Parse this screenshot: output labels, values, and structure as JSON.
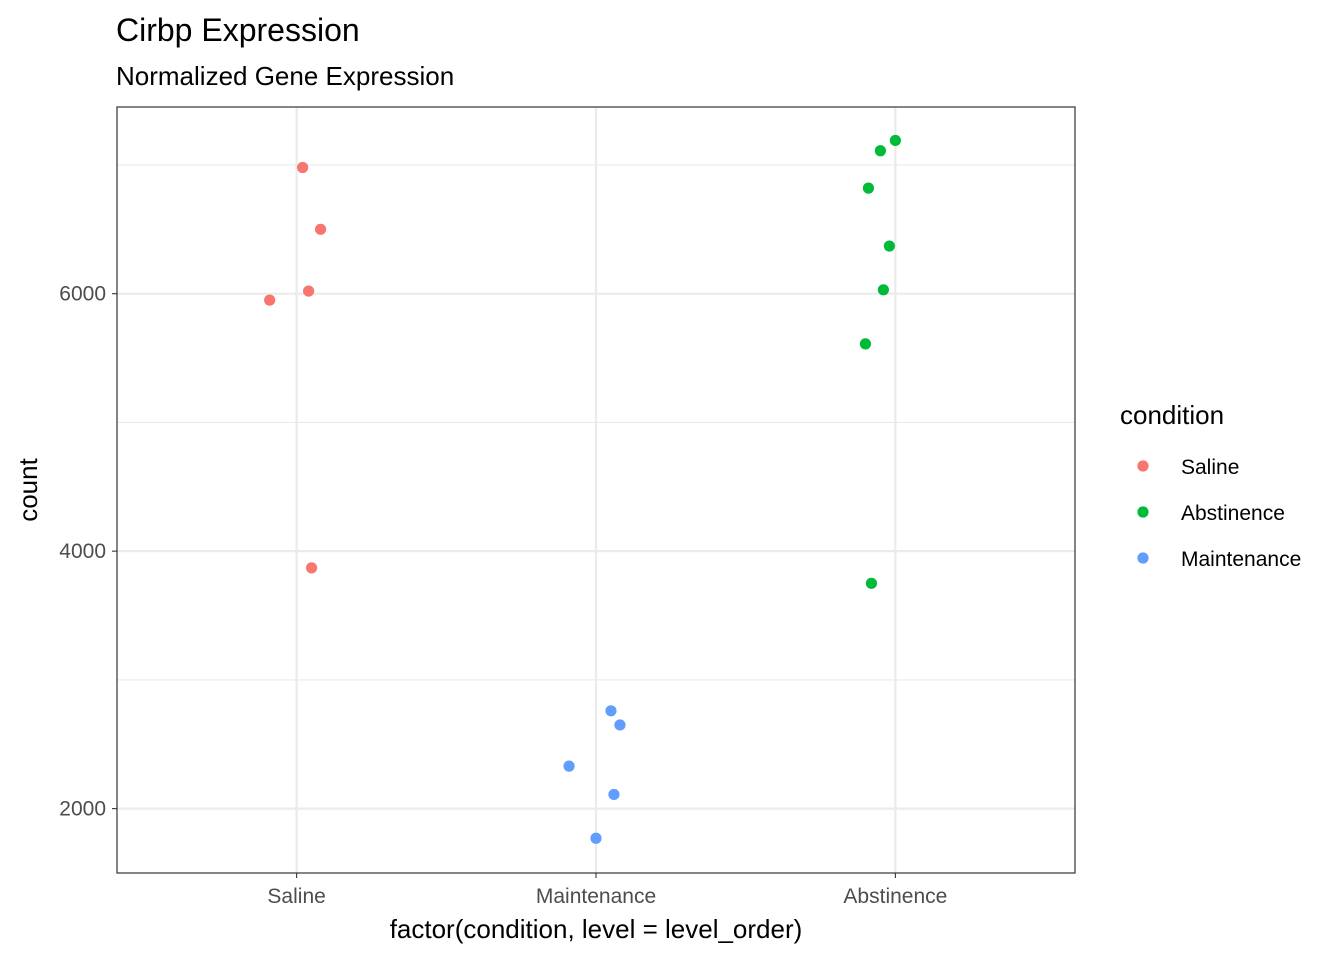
{
  "chart_data": {
    "type": "scatter",
    "title": "Cirbp Expression",
    "subtitle": "Normalized Gene Expression",
    "xlabel": "factor(condition, level = level_order)",
    "ylabel": "count",
    "categories": [
      "Saline",
      "Maintenance",
      "Abstinence"
    ],
    "ylim": [
      1500,
      7450
    ],
    "y_ticks": [
      2000,
      4000,
      6000
    ],
    "y_minor_ticks": [
      3000,
      5000,
      7000
    ],
    "grid": true,
    "legend": {
      "title": "condition",
      "position": "right",
      "entries": [
        "Saline",
        "Abstinence",
        "Maintenance"
      ]
    },
    "colors": {
      "Saline": "#F8766D",
      "Abstinence": "#00BA38",
      "Maintenance": "#619CFF"
    },
    "series": [
      {
        "name": "Saline",
        "category": "Saline",
        "points": [
          {
            "jitter": 0.02,
            "y": 6980
          },
          {
            "jitter": 0.08,
            "y": 6500
          },
          {
            "jitter": 0.04,
            "y": 6020
          },
          {
            "jitter": -0.09,
            "y": 5950
          },
          {
            "jitter": 0.05,
            "y": 3870
          }
        ]
      },
      {
        "name": "Maintenance",
        "category": "Maintenance",
        "points": [
          {
            "jitter": 0.05,
            "y": 2760
          },
          {
            "jitter": 0.08,
            "y": 2650
          },
          {
            "jitter": -0.09,
            "y": 2330
          },
          {
            "jitter": 0.06,
            "y": 2110
          },
          {
            "jitter": 0.0,
            "y": 1770
          }
        ]
      },
      {
        "name": "Abstinence",
        "category": "Abstinence",
        "points": [
          {
            "jitter": 0.0,
            "y": 7190
          },
          {
            "jitter": -0.05,
            "y": 7110
          },
          {
            "jitter": -0.09,
            "y": 6820
          },
          {
            "jitter": -0.02,
            "y": 6370
          },
          {
            "jitter": -0.04,
            "y": 6030
          },
          {
            "jitter": -0.1,
            "y": 5610
          },
          {
            "jitter": -0.08,
            "y": 3750
          }
        ]
      }
    ]
  }
}
